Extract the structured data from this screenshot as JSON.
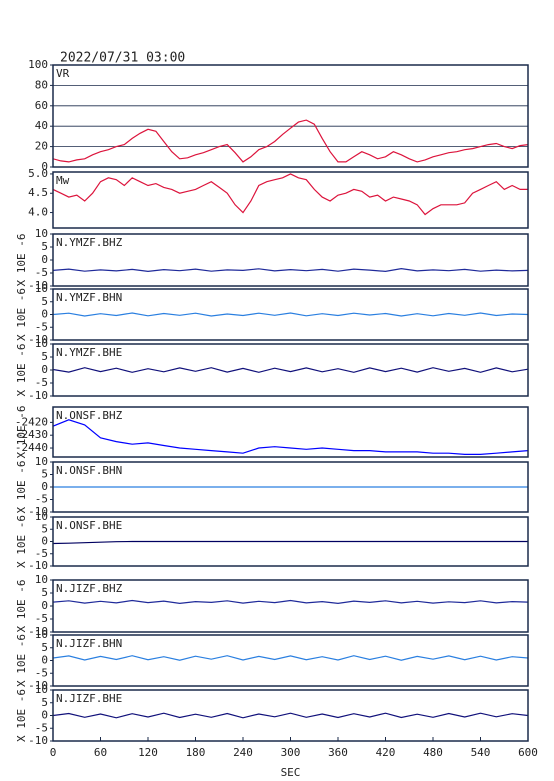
{
  "title": "2022/07/31 03:00",
  "chart_data": [
    {
      "type": "line",
      "title": "VR",
      "color": "#dc143c",
      "grid": true,
      "x": [
        0,
        10,
        20,
        30,
        40,
        50,
        60,
        70,
        80,
        90,
        100,
        110,
        120,
        130,
        140,
        150,
        160,
        170,
        180,
        190,
        200,
        210,
        220,
        230,
        240,
        250,
        260,
        270,
        280,
        290,
        300,
        310,
        320,
        330,
        340,
        350,
        360,
        370,
        380,
        390,
        400,
        410,
        420,
        430,
        440,
        450,
        460,
        470,
        480,
        490,
        500,
        510,
        520,
        530,
        540,
        550,
        560,
        570,
        580,
        590,
        600
      ],
      "values": [
        8,
        6,
        5,
        7,
        8,
        12,
        15,
        17,
        20,
        22,
        28,
        33,
        37,
        35,
        25,
        15,
        8,
        9,
        12,
        14,
        17,
        20,
        22,
        14,
        5,
        10,
        17,
        20,
        25,
        32,
        38,
        44,
        46,
        42,
        28,
        15,
        5,
        5,
        10,
        15,
        12,
        8,
        10,
        15,
        12,
        8,
        5,
        7,
        10,
        12,
        14,
        15,
        17,
        18,
        20,
        22,
        23,
        20,
        18,
        21,
        22
      ],
      "xlim": [
        0,
        600
      ],
      "ylim": [
        0,
        100
      ],
      "yticks": [
        0,
        20,
        40,
        60,
        80,
        100
      ]
    },
    {
      "type": "line",
      "title": "Mw",
      "color": "#dc143c",
      "x": [
        0,
        10,
        20,
        30,
        40,
        50,
        60,
        70,
        80,
        90,
        100,
        110,
        120,
        130,
        140,
        150,
        160,
        170,
        180,
        190,
        200,
        210,
        220,
        230,
        240,
        250,
        260,
        270,
        280,
        290,
        300,
        310,
        320,
        330,
        340,
        350,
        360,
        370,
        380,
        390,
        400,
        410,
        420,
        430,
        440,
        450,
        460,
        470,
        480,
        490,
        500,
        510,
        520,
        530,
        540,
        550,
        560,
        570,
        580,
        590,
        600
      ],
      "values": [
        4.6,
        4.5,
        4.4,
        4.45,
        4.3,
        4.5,
        4.8,
        4.9,
        4.85,
        4.7,
        4.9,
        4.8,
        4.7,
        4.75,
        4.65,
        4.6,
        4.5,
        4.55,
        4.6,
        4.7,
        4.8,
        4.65,
        4.5,
        4.2,
        4.0,
        4.3,
        4.7,
        4.8,
        4.85,
        4.9,
        5.0,
        4.9,
        4.85,
        4.6,
        4.4,
        4.3,
        4.45,
        4.5,
        4.6,
        4.55,
        4.4,
        4.45,
        4.3,
        4.4,
        4.35,
        4.3,
        4.2,
        3.95,
        4.1,
        4.2,
        4.2,
        4.2,
        4.25,
        4.5,
        4.6,
        4.7,
        4.8,
        4.6,
        4.7,
        4.6,
        4.6
      ],
      "xlim": [
        0,
        600
      ],
      "ylim": [
        3.6,
        5.05
      ],
      "yticks": [
        {
          "value": 4,
          "label": "4.0"
        },
        4.5,
        {
          "value": 5,
          "label": "5.0"
        }
      ]
    },
    {
      "type": "line",
      "title": "N.YMZF.BHZ",
      "ylabel": "X 10E -6",
      "color": "#1f2a9a",
      "x": [
        0,
        20,
        40,
        60,
        80,
        100,
        120,
        140,
        160,
        180,
        200,
        220,
        240,
        260,
        280,
        300,
        320,
        340,
        360,
        380,
        400,
        420,
        440,
        460,
        480,
        500,
        520,
        540,
        560,
        580,
        600
      ],
      "values": [
        -4,
        -3.5,
        -4.3,
        -3.8,
        -4.2,
        -3.6,
        -4.4,
        -3.7,
        -4.1,
        -3.5,
        -4.3,
        -3.8,
        -4,
        -3.4,
        -4.2,
        -3.7,
        -4.1,
        -3.6,
        -4.3,
        -3.5,
        -3.9,
        -4.4,
        -3.3,
        -4.2,
        -3.8,
        -4.1,
        -3.6,
        -4.3,
        -3.9,
        -4.2,
        -4
      ],
      "xlim": [
        0,
        600
      ],
      "ylim": [
        -10,
        10
      ],
      "yticks": [
        10,
        5,
        0,
        -5,
        -10
      ]
    },
    {
      "type": "line",
      "title": "N.YMZF.BHN",
      "ylabel": "X 10E -6",
      "color": "#2a7fe0",
      "x": [
        0,
        20,
        40,
        60,
        80,
        100,
        120,
        140,
        160,
        180,
        200,
        220,
        240,
        260,
        280,
        300,
        320,
        340,
        360,
        380,
        400,
        420,
        440,
        460,
        480,
        500,
        520,
        540,
        560,
        580,
        600
      ],
      "values": [
        0,
        0.5,
        -0.6,
        0.3,
        -0.4,
        0.6,
        -0.5,
        0.4,
        -0.3,
        0.5,
        -0.6,
        0.2,
        -0.4,
        0.5,
        -0.3,
        0.6,
        -0.5,
        0.3,
        -0.4,
        0.5,
        -0.2,
        0.4,
        -0.6,
        0.3,
        -0.5,
        0.4,
        -0.3,
        0.6,
        -0.4,
        0.2,
        0
      ],
      "xlim": [
        0,
        600
      ],
      "ylim": [
        -10,
        10
      ],
      "yticks": [
        10,
        5,
        0,
        -5,
        -10
      ]
    },
    {
      "type": "line",
      "title": "N.YMZF.BHE",
      "ylabel": "X 10E -6",
      "color": "#10107a",
      "x": [
        0,
        20,
        40,
        60,
        80,
        100,
        120,
        140,
        160,
        180,
        200,
        220,
        240,
        260,
        280,
        300,
        320,
        340,
        360,
        380,
        400,
        420,
        440,
        460,
        480,
        500,
        520,
        540,
        560,
        580,
        600
      ],
      "values": [
        0.2,
        -0.8,
        0.9,
        -0.6,
        0.7,
        -0.9,
        0.5,
        -0.7,
        0.8,
        -0.5,
        0.9,
        -0.8,
        0.6,
        -0.9,
        0.7,
        -0.6,
        0.8,
        -0.7,
        0.5,
        -0.9,
        0.8,
        -0.6,
        0.7,
        -0.8,
        0.9,
        -0.5,
        0.6,
        -0.9,
        0.8,
        -0.7,
        0.3
      ],
      "xlim": [
        0,
        600
      ],
      "ylim": [
        -10,
        10
      ],
      "yticks": [
        10,
        5,
        0,
        -5,
        -10
      ]
    },
    {
      "type": "line",
      "title": "N.ONSF.BHZ",
      "ylabel": "X 10E -6",
      "color": "#0000ff",
      "x": [
        0,
        20,
        40,
        60,
        80,
        100,
        120,
        140,
        160,
        180,
        200,
        220,
        240,
        260,
        280,
        300,
        320,
        340,
        360,
        380,
        400,
        420,
        440,
        460,
        480,
        500,
        520,
        540,
        560,
        580,
        600
      ],
      "values": [
        -2423,
        -2418,
        -2422,
        -2432,
        -2435,
        -2437,
        -2436,
        -2438,
        -2440,
        -2441,
        -2442,
        -2443,
        -2444,
        -2440,
        -2439,
        -2440,
        -2441,
        -2440,
        -2441,
        -2442,
        -2442,
        -2443,
        -2443,
        -2443,
        -2444,
        -2444,
        -2445,
        -2445,
        -2444,
        -2443,
        -2442
      ],
      "xlim": [
        0,
        600
      ],
      "ylim": [
        -2447,
        -2408
      ],
      "yticks": [
        -2420,
        -2430,
        -2440
      ]
    },
    {
      "type": "line",
      "title": "N.ONSF.BHN",
      "ylabel": "X 10E -6",
      "color": "#2a7fe0",
      "x": [
        0,
        20,
        40,
        60,
        80,
        100,
        120,
        140,
        160,
        180,
        200,
        220,
        240,
        260,
        280,
        300,
        320,
        340,
        360,
        380,
        400,
        420,
        440,
        460,
        480,
        500,
        520,
        540,
        560,
        580,
        600
      ],
      "values": [
        0,
        0,
        0,
        0,
        0,
        0,
        0,
        0,
        0,
        0,
        0,
        0,
        0,
        0,
        0,
        0,
        0,
        0,
        0,
        0,
        0,
        0,
        0,
        0,
        0,
        0,
        0,
        0,
        0,
        0,
        0
      ],
      "xlim": [
        0,
        600
      ],
      "ylim": [
        -10,
        10
      ],
      "yticks": [
        10,
        5,
        0,
        -5,
        -10
      ]
    },
    {
      "type": "line",
      "title": "N.ONSF.BHE",
      "ylabel": "X 10E -6",
      "color": "#000060",
      "x": [
        0,
        20,
        40,
        60,
        80,
        100,
        120,
        140,
        160,
        180,
        200,
        220,
        240,
        260,
        280,
        300,
        320,
        340,
        360,
        380,
        400,
        420,
        440,
        460,
        480,
        500,
        520,
        540,
        560,
        580,
        600
      ],
      "values": [
        -0.8,
        -0.7,
        -0.5,
        -0.3,
        -0.1,
        0,
        0,
        0,
        0,
        0,
        0,
        0,
        0,
        0,
        0,
        0,
        0,
        0,
        0,
        0,
        0,
        0,
        0,
        0,
        0,
        0,
        0,
        0,
        0,
        0,
        0
      ],
      "xlim": [
        0,
        600
      ],
      "ylim": [
        -10,
        10
      ],
      "yticks": [
        10,
        5,
        0,
        -5,
        -10
      ]
    },
    {
      "type": "line",
      "title": "N.JIZF.BHZ",
      "ylabel": "X 10E -6",
      "color": "#1f2a9a",
      "x": [
        0,
        20,
        40,
        60,
        80,
        100,
        120,
        140,
        160,
        180,
        200,
        220,
        240,
        260,
        280,
        300,
        320,
        340,
        360,
        380,
        400,
        420,
        440,
        460,
        480,
        500,
        520,
        540,
        560,
        580,
        600
      ],
      "values": [
        1.5,
        2,
        1.1,
        1.8,
        1.2,
        2.1,
        1.3,
        1.9,
        1.0,
        1.7,
        1.4,
        2.0,
        1.1,
        1.8,
        1.3,
        2.1,
        1.2,
        1.7,
        1.0,
        1.9,
        1.4,
        2.0,
        1.2,
        1.8,
        1.1,
        1.6,
        1.3,
        2.0,
        1.2,
        1.7,
        1.5
      ],
      "xlim": [
        0,
        600
      ],
      "ylim": [
        -10,
        10
      ],
      "yticks": [
        10,
        5,
        0,
        -5,
        -10
      ]
    },
    {
      "type": "line",
      "title": "N.JIZF.BHN",
      "ylabel": "X 10E -6",
      "color": "#2a7fe0",
      "x": [
        0,
        20,
        40,
        60,
        80,
        100,
        120,
        140,
        160,
        180,
        200,
        220,
        240,
        260,
        280,
        300,
        320,
        340,
        360,
        380,
        400,
        420,
        440,
        460,
        480,
        500,
        520,
        540,
        560,
        580,
        600
      ],
      "values": [
        1,
        1.8,
        0.2,
        1.6,
        0.4,
        1.9,
        0.3,
        1.5,
        0.1,
        1.7,
        0.5,
        1.9,
        0.2,
        1.6,
        0.4,
        1.8,
        0.3,
        1.5,
        0.2,
        1.9,
        0.4,
        1.7,
        0.1,
        1.6,
        0.5,
        1.8,
        0.3,
        1.7,
        0.2,
        1.5,
        1
      ],
      "xlim": [
        0,
        600
      ],
      "ylim": [
        -10,
        10
      ],
      "yticks": [
        10,
        5,
        0,
        -5,
        -10
      ]
    },
    {
      "type": "line",
      "title": "N.JIZF.BHE",
      "ylabel": "X 10E -6",
      "color": "#10107a",
      "x": [
        0,
        20,
        40,
        60,
        80,
        100,
        120,
        140,
        160,
        180,
        200,
        220,
        240,
        260,
        280,
        300,
        320,
        340,
        360,
        380,
        400,
        420,
        440,
        460,
        480,
        500,
        520,
        540,
        560,
        580,
        600
      ],
      "values": [
        0,
        0.8,
        -0.7,
        0.6,
        -0.9,
        0.7,
        -0.6,
        0.9,
        -0.8,
        0.5,
        -0.7,
        0.8,
        -0.9,
        0.6,
        -0.5,
        0.9,
        -0.7,
        0.6,
        -0.8,
        0.7,
        -0.6,
        0.9,
        -0.8,
        0.5,
        -0.7,
        0.8,
        -0.6,
        0.9,
        -0.5,
        0.7,
        0
      ],
      "xlim": [
        0,
        600
      ],
      "ylim": [
        -10,
        10
      ],
      "yticks": [
        10,
        5,
        0,
        -5,
        -10
      ],
      "xticks": [
        0,
        60,
        120,
        180,
        240,
        300,
        360,
        420,
        480,
        540,
        600
      ],
      "xlabel": "SEC"
    }
  ]
}
